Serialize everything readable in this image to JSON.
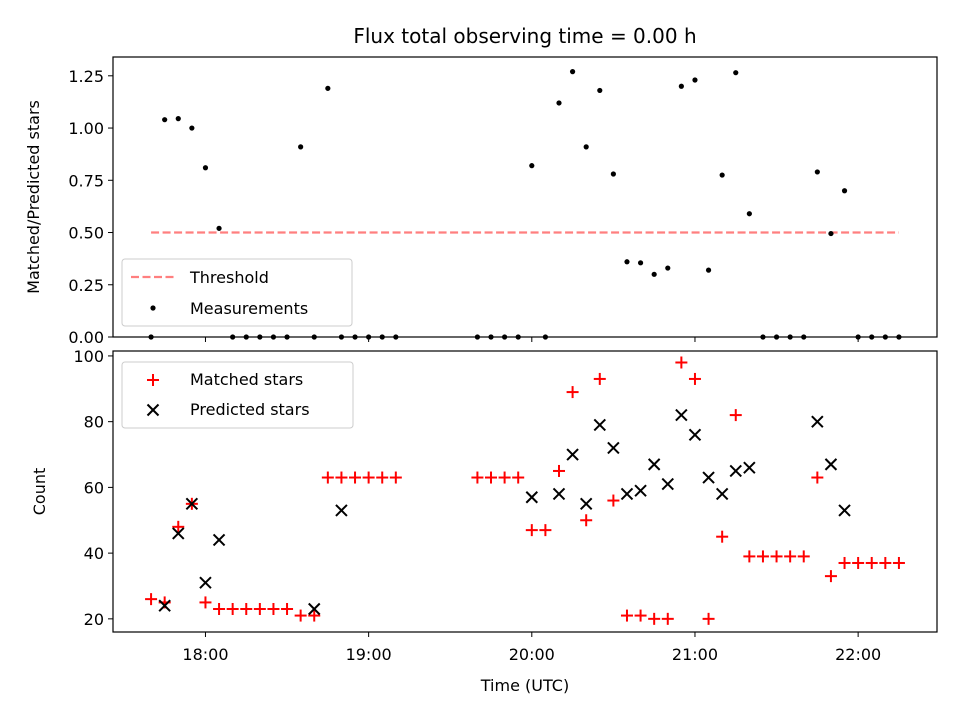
{
  "chart_data": [
    {
      "type": "scatter",
      "title": "Flux total observing time = 0.00 h",
      "xlabel": "",
      "ylabel": "Matched/Predicted stars",
      "xlim": [
        "17:26",
        "22:29"
      ],
      "ylim": [
        0,
        1.34
      ],
      "yticks": [
        "0.00",
        "0.25",
        "0.50",
        "0.75",
        "1.00",
        "1.25"
      ],
      "xticks": [
        "18:00",
        "19:00",
        "20:00",
        "21:00",
        "22:00"
      ],
      "x_tick_labels_visible": false,
      "legend": {
        "position": "lower-left",
        "entries": [
          "Threshold",
          "Measurements"
        ]
      },
      "series": [
        {
          "name": "Threshold",
          "kind": "line",
          "style": "dashed",
          "color": "#ff7f7f",
          "x": [
            "17:40",
            "22:15"
          ],
          "y": [
            0.5,
            0.5
          ]
        },
        {
          "name": "Measurements",
          "kind": "points",
          "color": "#000000",
          "x": [
            "17:40",
            "17:45",
            "17:50",
            "17:55",
            "18:00",
            "18:05",
            "18:10",
            "18:15",
            "18:20",
            "18:25",
            "18:30",
            "18:35",
            "18:40",
            "18:45",
            "18:50",
            "18:55",
            "19:00",
            "19:05",
            "19:10",
            "19:40",
            "19:45",
            "19:50",
            "19:55",
            "20:00",
            "20:05",
            "20:10",
            "20:15",
            "20:20",
            "20:25",
            "20:30",
            "20:35",
            "20:40",
            "20:45",
            "20:50",
            "20:55",
            "21:00",
            "21:05",
            "21:10",
            "21:15",
            "21:20",
            "21:25",
            "21:30",
            "21:35",
            "21:40",
            "21:45",
            "21:50",
            "21:55",
            "22:00",
            "22:05",
            "22:10",
            "22:15"
          ],
          "y": [
            0.0,
            1.04,
            1.045,
            1.0,
            0.81,
            0.52,
            0.0,
            0.0,
            0.0,
            0.0,
            0.0,
            0.91,
            0.0,
            1.19,
            0.0,
            0.0,
            0.0,
            0.0,
            0.0,
            0.0,
            0.0,
            0.0,
            0.0,
            0.82,
            0.0,
            1.12,
            1.27,
            0.91,
            1.18,
            0.78,
            0.36,
            0.355,
            0.3,
            0.33,
            1.2,
            1.23,
            0.32,
            0.775,
            1.265,
            0.59,
            0.0,
            0.0,
            0.0,
            0.0,
            0.79,
            0.495,
            0.7,
            0.0,
            0.0,
            0.0,
            0.0
          ]
        }
      ]
    },
    {
      "type": "scatter",
      "title": "",
      "xlabel": "Time (UTC)",
      "ylabel": "Count",
      "xlim": [
        "17:26",
        "22:29"
      ],
      "ylim": [
        16,
        101.5
      ],
      "yticks": [
        "20",
        "40",
        "60",
        "80",
        "100"
      ],
      "xticks": [
        "18:00",
        "19:00",
        "20:00",
        "21:00",
        "22:00"
      ],
      "legend": {
        "position": "upper-left",
        "entries": [
          "Matched stars",
          "Predicted stars"
        ]
      },
      "series": [
        {
          "name": "Matched stars",
          "marker": "plus",
          "color": "#ff0000",
          "x": [
            "17:40",
            "17:45",
            "17:50",
            "17:55",
            "18:00",
            "18:05",
            "18:10",
            "18:15",
            "18:20",
            "18:25",
            "18:30",
            "18:35",
            "18:40",
            "18:45",
            "18:50",
            "18:55",
            "19:00",
            "19:05",
            "19:10",
            "19:40",
            "19:45",
            "19:50",
            "19:55",
            "20:00",
            "20:05",
            "20:10",
            "20:15",
            "20:20",
            "20:25",
            "20:30",
            "20:35",
            "20:40",
            "20:45",
            "20:50",
            "20:55",
            "21:00",
            "21:05",
            "21:10",
            "21:15",
            "21:20",
            "21:25",
            "21:30",
            "21:35",
            "21:40",
            "21:45",
            "21:50",
            "21:55",
            "22:00",
            "22:05",
            "22:10",
            "22:15"
          ],
          "y": [
            26,
            25,
            48,
            55,
            25,
            23,
            23,
            23,
            23,
            23,
            23,
            21,
            21,
            63,
            63,
            63,
            63,
            63,
            63,
            63,
            63,
            63,
            63,
            47,
            47,
            65,
            89,
            50,
            93,
            56,
            21,
            21,
            20,
            20,
            98,
            93,
            20,
            45,
            82,
            39,
            39,
            39,
            39,
            39,
            63,
            33,
            37,
            37,
            37,
            37,
            37
          ]
        },
        {
          "name": "Predicted stars",
          "marker": "x",
          "color": "#000000",
          "x": [
            "17:45",
            "17:50",
            "17:55",
            "18:00",
            "18:05",
            "18:40",
            "18:50",
            "20:00",
            "20:10",
            "20:15",
            "20:20",
            "20:25",
            "20:30",
            "20:35",
            "20:40",
            "20:45",
            "20:50",
            "20:55",
            "21:00",
            "21:05",
            "21:10",
            "21:15",
            "21:20",
            "21:45",
            "21:50",
            "21:55"
          ],
          "y": [
            24,
            46,
            55,
            31,
            44,
            23,
            53,
            57,
            58,
            70,
            55,
            79,
            72,
            58,
            59,
            67,
            61,
            82,
            76,
            63,
            58,
            65,
            66,
            80,
            67,
            53
          ]
        }
      ]
    }
  ]
}
